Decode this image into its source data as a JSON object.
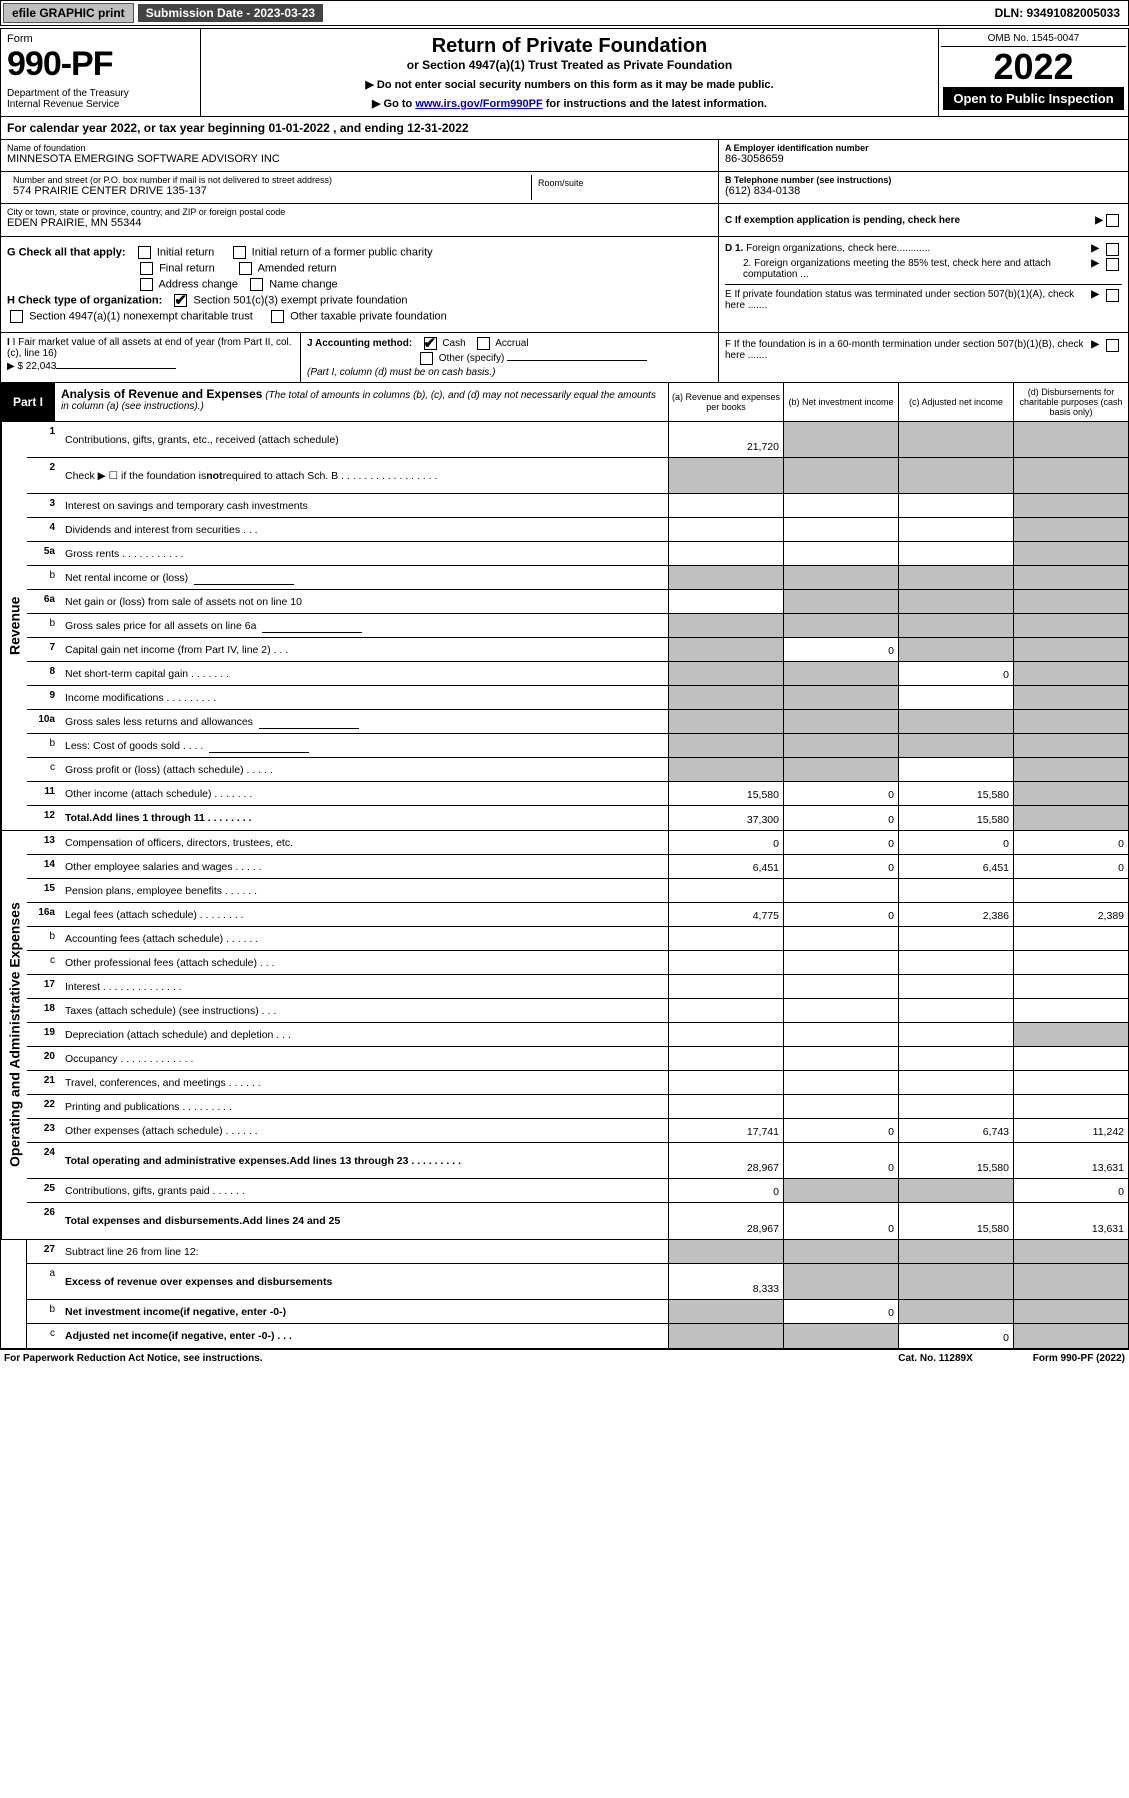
{
  "meta": {
    "efile_label": "efile GRAPHIC print",
    "submission_label": "Submission Date - 2023-03-23",
    "dln": "DLN: 93491082005033",
    "omb": "OMB No. 1545-0047",
    "form_word": "Form",
    "form_number": "990-PF",
    "dept": "Department of the Treasury\nInternal Revenue Service",
    "title": "Return of Private Foundation",
    "subtitle": "or Section 4947(a)(1) Trust Treated as Private Foundation",
    "note1": "▶ Do not enter social security numbers on this form as it may be made public.",
    "note2_pre": "▶ Go to ",
    "note2_link": "www.irs.gov/Form990PF",
    "note2_post": " for instructions and the latest information.",
    "year": "2022",
    "open_public": "Open to Public Inspection"
  },
  "cal_year": "For calendar year 2022, or tax year beginning 01-01-2022                              , and ending 12-31-2022",
  "entity": {
    "name_lbl": "Name of foundation",
    "name": "MINNESOTA EMERGING SOFTWARE ADVISORY INC",
    "addr_lbl": "Number and street (or P.O. box number if mail is not delivered to street address)",
    "addr": "574 PRAIRIE CENTER DRIVE 135-137",
    "room_lbl": "Room/suite",
    "city_lbl": "City or town, state or province, country, and ZIP or foreign postal code",
    "city": "EDEN PRAIRIE, MN  55344",
    "ein_lbl": "A Employer identification number",
    "ein": "86-3058659",
    "phone_lbl": "B Telephone number (see instructions)",
    "phone": "(612) 834-0138",
    "c_lbl": "C If exemption application is pending, check here"
  },
  "checks": {
    "g_label": "G Check all that apply:",
    "g_items": [
      "Initial return",
      "Initial return of a former public charity",
      "Final return",
      "Amended return",
      "Address change",
      "Name change"
    ],
    "h_label": "H Check type of organization:",
    "h_items": [
      "Section 501(c)(3) exempt private foundation",
      "Section 4947(a)(1) nonexempt charitable trust",
      "Other taxable private foundation"
    ],
    "h_checked": 0,
    "d1": "D 1. Foreign organizations, check here............",
    "d2": "2. Foreign organizations meeting the 85% test, check here and attach computation ...",
    "e": "E  If private foundation status was terminated under section 507(b)(1)(A), check here .......",
    "f": "F  If the foundation is in a 60-month termination under section 507(b)(1)(B), check here .......",
    "i_label": "I Fair market value of all assets at end of year (from Part II, col. (c), line 16)",
    "i_value": "▶ $  22,043",
    "j_label": "J Accounting method:",
    "j_cash": "Cash",
    "j_accrual": "Accrual",
    "j_other": "Other (specify)",
    "j_note": "(Part I, column (d) must be on cash basis.)"
  },
  "part1": {
    "label": "Part I",
    "title": "Analysis of Revenue and Expenses",
    "desc": "(The total of amounts in columns (b), (c), and (d) may not necessarily equal the amounts in column (a) (see instructions).)",
    "cols": {
      "a": "(a)   Revenue and expenses per books",
      "b": "(b)   Net investment income",
      "c": "(c)   Adjusted net income",
      "d": "(d)   Disbursements for charitable purposes (cash basis only)"
    }
  },
  "side_labels": {
    "revenue": "Revenue",
    "expenses": "Operating and Administrative Expenses"
  },
  "rows": [
    {
      "n": "1",
      "lbl": "Contributions, gifts, grants, etc., received (attach schedule)",
      "a": "21,720",
      "b": "sh",
      "c": "sh",
      "d": "sh",
      "tall": true
    },
    {
      "n": "2",
      "lbl": "Check ▶ ☐ if the foundation is <b>not</b> required to attach Sch. B  .  .  .  .  .  .  .  .  .  .  .  .  .  .  .  .  .",
      "a": "sh",
      "b": "sh",
      "c": "sh",
      "d": "sh",
      "tall": true
    },
    {
      "n": "3",
      "lbl": "Interest on savings and temporary cash investments",
      "d": "sh"
    },
    {
      "n": "4",
      "lbl": "Dividends and interest from securities   .   .   .",
      "d": "sh"
    },
    {
      "n": "5a",
      "lbl": "Gross rents   .   .   .   .   .   .   .   .   .   .   .",
      "d": "sh"
    },
    {
      "n": "b",
      "lbl": "Net rental income or (loss)",
      "a": "sh-half",
      "b": "sh",
      "c": "sh",
      "d": "sh",
      "indent": true,
      "sub": true
    },
    {
      "n": "6a",
      "lbl": "Net gain or (loss) from sale of assets not on line 10",
      "b": "sh",
      "c": "sh",
      "d": "sh"
    },
    {
      "n": "b",
      "lbl": "Gross sales price for all assets on line 6a",
      "a": "sh-half",
      "b": "sh",
      "c": "sh",
      "d": "sh",
      "indent": true,
      "sub": true
    },
    {
      "n": "7",
      "lbl": "Capital gain net income (from Part IV, line 2)   .   .   .",
      "a": "sh",
      "b": "0",
      "c": "sh",
      "d": "sh"
    },
    {
      "n": "8",
      "lbl": "Net short-term capital gain   .   .   .   .   .   .   .",
      "a": "sh",
      "b": "sh",
      "c": "0",
      "d": "sh"
    },
    {
      "n": "9",
      "lbl": "Income modifications .   .   .   .   .   .   .   .   .",
      "a": "sh",
      "b": "sh",
      "d": "sh"
    },
    {
      "n": "10a",
      "lbl": "Gross sales less returns and allowances",
      "a": "sh-half",
      "b": "sh",
      "c": "sh",
      "d": "sh",
      "sub": true
    },
    {
      "n": "b",
      "lbl": "Less: Cost of goods sold   .   .   .   .",
      "a": "sh-half",
      "b": "sh",
      "c": "sh",
      "d": "sh",
      "indent": true,
      "sub": true
    },
    {
      "n": "c",
      "lbl": "Gross profit or (loss) (attach schedule)   .   .   .   .   .",
      "a": "sh",
      "b": "sh",
      "d": "sh",
      "indent": true
    },
    {
      "n": "11",
      "lbl": "Other income (attach schedule)   .   .   .   .   .   .   .",
      "a": "15,580",
      "b": "0",
      "c": "15,580",
      "d": "sh"
    },
    {
      "n": "12",
      "lbl": "<b>Total.</b> Add lines 1 through 11   .   .   .   .   .   .   .   .",
      "a": "37,300",
      "b": "0",
      "c": "15,580",
      "d": "sh",
      "bold": true
    }
  ],
  "exp_rows": [
    {
      "n": "13",
      "lbl": "Compensation of officers, directors, trustees, etc.",
      "a": "0",
      "b": "0",
      "c": "0",
      "d": "0"
    },
    {
      "n": "14",
      "lbl": "Other employee salaries and wages   .   .   .   .   .",
      "a": "6,451",
      "b": "0",
      "c": "6,451",
      "d": "0"
    },
    {
      "n": "15",
      "lbl": "Pension plans, employee benefits .   .   .   .   .   ."
    },
    {
      "n": "16a",
      "lbl": "Legal fees (attach schedule) .   .   .   .   .   .   .   .",
      "a": "4,775",
      "b": "0",
      "c": "2,386",
      "d": "2,389"
    },
    {
      "n": "b",
      "lbl": "Accounting fees (attach schedule) .   .   .   .   .   .",
      "indent": true
    },
    {
      "n": "c",
      "lbl": "Other professional fees (attach schedule)   .   .   .",
      "indent": true
    },
    {
      "n": "17",
      "lbl": "Interest  .   .   .   .   .   .   .   .   .   .   .   .   .   ."
    },
    {
      "n": "18",
      "lbl": "Taxes (attach schedule) (see instructions)   .   .   ."
    },
    {
      "n": "19",
      "lbl": "Depreciation (attach schedule) and depletion   .   .   .",
      "d": "sh"
    },
    {
      "n": "20",
      "lbl": "Occupancy .   .   .   .   .   .   .   .   .   .   .   .   ."
    },
    {
      "n": "21",
      "lbl": "Travel, conferences, and meetings .   .   .   .   .   ."
    },
    {
      "n": "22",
      "lbl": "Printing and publications .   .   .   .   .   .   .   .   ."
    },
    {
      "n": "23",
      "lbl": "Other expenses (attach schedule) .   .   .   .   .   .",
      "a": "17,741",
      "b": "0",
      "c": "6,743",
      "d": "11,242"
    },
    {
      "n": "24",
      "lbl": "<b>Total operating and administrative expenses.</b> Add lines 13 through 23   .   .   .   .   .   .   .   .   .",
      "a": "28,967",
      "b": "0",
      "c": "15,580",
      "d": "13,631",
      "bold": true,
      "tall": true
    },
    {
      "n": "25",
      "lbl": "Contributions, gifts, grants paid   .   .   .   .   .   .",
      "a": "0",
      "b": "sh",
      "c": "sh",
      "d": "0"
    },
    {
      "n": "26",
      "lbl": "<b>Total expenses and disbursements.</b> Add lines 24 and 25",
      "a": "28,967",
      "b": "0",
      "c": "15,580",
      "d": "13,631",
      "bold": true,
      "tall": true
    }
  ],
  "final_rows": [
    {
      "n": "27",
      "lbl": "Subtract line 26 from line 12:",
      "a": "sh",
      "b": "sh",
      "c": "sh",
      "d": "sh"
    },
    {
      "n": "a",
      "lbl": "<b>Excess of revenue over expenses and disbursements</b>",
      "a": "8,333",
      "b": "sh",
      "c": "sh",
      "d": "sh",
      "indent": true,
      "bold": true,
      "tall": true
    },
    {
      "n": "b",
      "lbl": "<b>Net investment income</b> (if negative, enter -0-)",
      "a": "sh",
      "b": "0",
      "c": "sh",
      "d": "sh",
      "indent": true,
      "bold": true
    },
    {
      "n": "c",
      "lbl": "<b>Adjusted net income</b> (if negative, enter -0-)   .   .   .",
      "a": "sh",
      "b": "sh",
      "c": "0",
      "d": "sh",
      "indent": true,
      "bold": true
    }
  ],
  "footer": {
    "left": "For Paperwork Reduction Act Notice, see instructions.",
    "mid": "Cat. No. 11289X",
    "right": "Form 990-PF (2022)"
  }
}
